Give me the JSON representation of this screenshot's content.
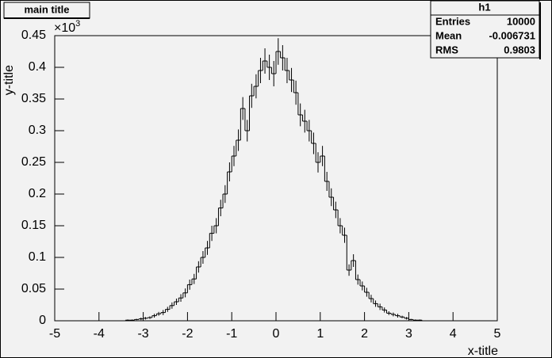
{
  "chart_data": {
    "type": "histogram",
    "title": "main title",
    "x_label": "x-title",
    "y_label": "y-title",
    "y_multiplier": {
      "base": "×10",
      "exponent": "3"
    },
    "stats": {
      "name": "h1",
      "rows": [
        [
          "Entries",
          "10000"
        ],
        [
          "Mean",
          "-0.006731"
        ],
        [
          "RMS",
          "0.9803"
        ]
      ]
    },
    "color": "#000000",
    "bins": [
      -5,
      -4.9,
      -4.8,
      -4.7,
      -4.6,
      -4.5,
      -4.4,
      -4.3,
      -4.2,
      -4.1,
      -4,
      -3.9,
      -3.8,
      -3.7,
      -3.6,
      -3.5,
      -3.4,
      -3.3,
      -3.2,
      -3.1,
      -3,
      -2.9,
      -2.8,
      -2.7,
      -2.6,
      -2.5,
      -2.4,
      -2.3,
      -2.2,
      -2.1,
      -2,
      -1.9,
      -1.8,
      -1.7,
      -1.6,
      -1.5,
      -1.4,
      -1.3,
      -1.2,
      -1.1,
      -1,
      -0.9,
      -0.8,
      -0.7,
      -0.6,
      -0.5,
      -0.4,
      -0.3,
      -0.2,
      -0.1,
      0,
      0.1,
      0.2,
      0.3,
      0.4,
      0.5,
      0.6,
      0.7,
      0.8,
      0.9,
      1,
      1.1,
      1.2,
      1.3,
      1.4,
      1.5,
      1.6,
      1.7,
      1.8,
      1.9,
      2,
      2.1,
      2.2,
      2.3,
      2.4,
      2.5,
      2.6,
      2.7,
      2.8,
      2.9,
      3,
      3.1,
      3.2,
      3.3,
      3.4,
      3.5,
      3.6,
      3.7,
      3.8,
      3.9,
      4,
      4.1,
      4.2,
      4.3,
      4.4,
      4.5,
      4.6,
      4.7,
      4.8,
      4.9,
      5
    ],
    "values": [
      0,
      0,
      0,
      0,
      0,
      0,
      0,
      0,
      0,
      0,
      0,
      0,
      0,
      0,
      0,
      0,
      0.001,
      0.001,
      0.002,
      0.003,
      0.004,
      0.005,
      0.008,
      0.011,
      0.013,
      0.018,
      0.024,
      0.03,
      0.036,
      0.044,
      0.057,
      0.066,
      0.085,
      0.1,
      0.115,
      0.138,
      0.15,
      0.178,
      0.2,
      0.235,
      0.26,
      0.285,
      0.335,
      0.3,
      0.355,
      0.37,
      0.395,
      0.41,
      0.4,
      0.39,
      0.425,
      0.415,
      0.395,
      0.38,
      0.36,
      0.325,
      0.315,
      0.3,
      0.28,
      0.25,
      0.26,
      0.22,
      0.195,
      0.175,
      0.15,
      0.135,
      0.08,
      0.095,
      0.065,
      0.055,
      0.045,
      0.035,
      0.027,
      0.022,
      0.017,
      0.012,
      0.01,
      0.008,
      0.006,
      0.004,
      0.002,
      0.001,
      0.001,
      0,
      0,
      0,
      0,
      0,
      0,
      0,
      0,
      0,
      0,
      0,
      0,
      0,
      0,
      0,
      0,
      0
    ],
    "errors": [
      0,
      0,
      0,
      0,
      0,
      0,
      0,
      0,
      0,
      0,
      0,
      0,
      0,
      0,
      0,
      0,
      0.001,
      0.001,
      0.001,
      0.002,
      0.002,
      0.002,
      0.003,
      0.003,
      0.004,
      0.004,
      0.005,
      0.005,
      0.006,
      0.007,
      0.008,
      0.008,
      0.009,
      0.01,
      0.011,
      0.012,
      0.012,
      0.013,
      0.014,
      0.015,
      0.016,
      0.017,
      0.018,
      0.017,
      0.019,
      0.019,
      0.02,
      0.02,
      0.02,
      0.02,
      0.021,
      0.02,
      0.02,
      0.019,
      0.019,
      0.018,
      0.018,
      0.017,
      0.017,
      0.016,
      0.016,
      0.015,
      0.014,
      0.013,
      0.012,
      0.012,
      0.009,
      0.01,
      0.008,
      0.007,
      0.007,
      0.006,
      0.005,
      0.005,
      0.004,
      0.003,
      0.003,
      0.003,
      0.002,
      0.002,
      0.001,
      0.001,
      0.001,
      0,
      0,
      0,
      0,
      0,
      0,
      0,
      0,
      0,
      0,
      0,
      0,
      0,
      0,
      0,
      0,
      0
    ],
    "xlim": [
      -5,
      5
    ],
    "xticks": [
      -5,
      -4,
      -3,
      -2,
      -1,
      0,
      1,
      2,
      3,
      4,
      5
    ],
    "ylim": [
      0,
      0.45
    ],
    "yticks": [
      0,
      0.05,
      0.1,
      0.15,
      0.2,
      0.25,
      0.3,
      0.35,
      0.4,
      0.45
    ]
  }
}
